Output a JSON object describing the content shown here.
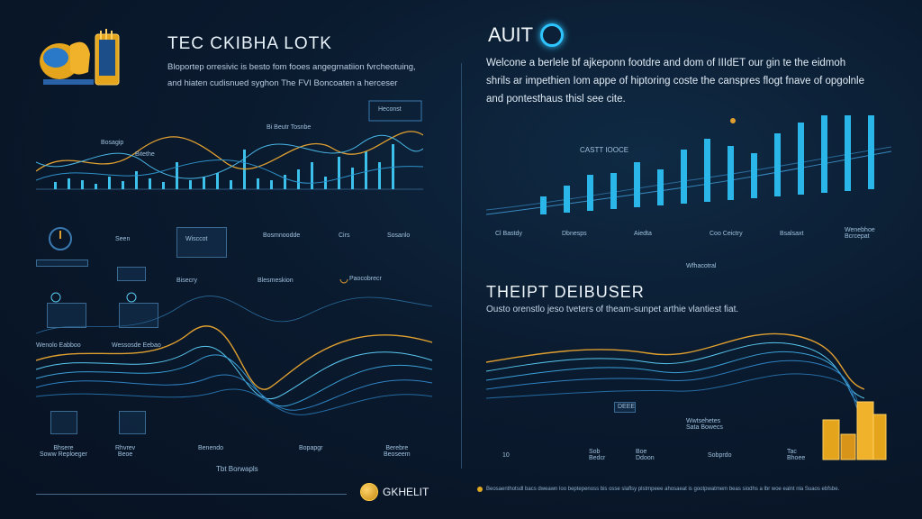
{
  "left": {
    "title": "TEC CKIBHA LOTK",
    "description_lines": [
      "Bloportep orresivic is besto fom fooes angegrnatiion fvrcheotuing,",
      "and hiaten cudisnued syghon The FVI Boncoaten a herceser"
    ],
    "top_chart_labels": [
      "Bosagip",
      "Bitethe",
      "Bi Beutr\nTosnbe",
      "Heconst"
    ],
    "middle_labels": [
      "Seen",
      "Wisccot",
      "Bosmnoodde",
      "Cirs",
      "Sosanlo"
    ],
    "lower_labels": [
      "Bisecry",
      "Blesmeskion",
      "Paocobrecr",
      "Wenolo Eabboo",
      "Wessosde Eebao"
    ],
    "bottom_labels": [
      "Bhsere\nSoww Reploeger",
      "Rhvrev\nBeoe",
      "Benendo",
      "Bopapgr",
      "Berebre\nBeoseem"
    ],
    "bottom_caption": "Tbt Borwapls",
    "colors": {
      "accent_gold": "#f0a020",
      "accent_blue": "#2ec4ff"
    }
  },
  "right": {
    "title": "AUIT",
    "description_lines": [
      "Welcone a berlele bf ajkeponn footdre and dom of IIIdET our gin te the eidmoh",
      "shrils ar impethien Iom appe of hiptoring coste the canspres flogt fnave of opgolnle",
      "and pontesthaus thisl see cite."
    ],
    "chart_label": "CASTT IOOCE",
    "bar_values": [
      2,
      3,
      4,
      4,
      5,
      4,
      6,
      7,
      6,
      5,
      7,
      8,
      9,
      10,
      9,
      10
    ],
    "bar_labels": [
      "Cl Bastdy",
      "Dbnesps",
      "Aiedta",
      "Coo Ceictry",
      "Bsalsaxt",
      "Wenebhoe\nBcrcepat"
    ],
    "bar_caption": "Wfhacotral",
    "section2_title": "THEIPT DEIBUSER",
    "section2_desc": "Ousto orenstlo jeso tveters of theam-sunpet arthie vlantiest fiat.",
    "line_chart_tag": "DEEE",
    "line_chart_note": "Wwtsehetes\nSata Bowecs",
    "axis_labels": [
      "10",
      "Sob\nBedcr",
      "Boe\nDdoon",
      "Sobprdo",
      "Tac\nBhoee"
    ]
  },
  "footer": {
    "brand": "GKHELIT",
    "note": "Beosaenthotsdl bacs dweawn loo beptepenoss bis osse slaflsy plstmpeee ahosaeat is gootpwatmem beas siodhs a lbr woe ealnt nla Suaos ebfsbe."
  }
}
